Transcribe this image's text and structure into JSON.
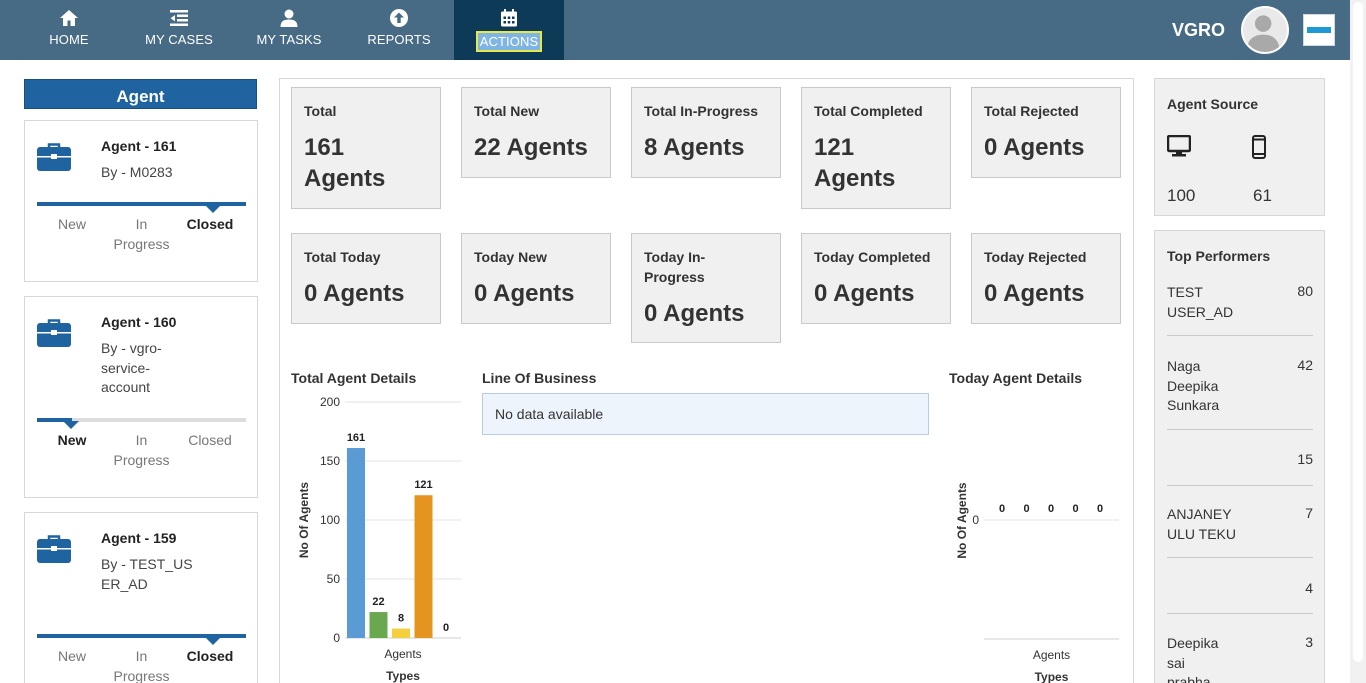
{
  "nav": {
    "items": [
      {
        "label": "HOME",
        "icon": "home-icon"
      },
      {
        "label": "MY CASES",
        "icon": "list-icon"
      },
      {
        "label": "MY TASKS",
        "icon": "user-icon"
      },
      {
        "label": "REPORTS",
        "icon": "upload-circle-icon"
      },
      {
        "label": "ACTIONS",
        "icon": "calendar-icon"
      }
    ],
    "active": "ACTIONS",
    "user": "VGRO"
  },
  "sidebar": {
    "header": "Agent",
    "stages": [
      "New",
      "In Progress",
      "Closed"
    ],
    "cards": [
      {
        "title": "Agent - 161",
        "by": "By - M0283",
        "stage": "Closed",
        "progress": 1.0
      },
      {
        "title": "Agent - 160",
        "by": "By - vgro-service-account",
        "stage": "New",
        "progress": 0.0
      },
      {
        "title": "Agent - 159",
        "by": "By - TEST_USER_AD",
        "stage": "Closed",
        "progress": 1.0
      }
    ]
  },
  "stats": {
    "row1": [
      {
        "label": "Total",
        "value": "161 Agents"
      },
      {
        "label": "Total New",
        "value": "22 Agents"
      },
      {
        "label": "Total In-Progress",
        "value": "8 Agents"
      },
      {
        "label": "Total Completed",
        "value": "121 Agents"
      },
      {
        "label": "Total Rejected",
        "value": "0 Agents"
      }
    ],
    "row2": [
      {
        "label": "Total Today",
        "value": "0 Agents"
      },
      {
        "label": "Today New",
        "value": "0 Agents"
      },
      {
        "label": "Today In-Progress",
        "value": "0 Agents"
      },
      {
        "label": "Today Completed",
        "value": "0 Agents"
      },
      {
        "label": "Today Rejected",
        "value": "0 Agents"
      }
    ]
  },
  "sections": {
    "total_details": "Total Agent Details",
    "line_of_business": "Line Of Business",
    "no_data": "No data available",
    "today_details": "Today Agent Details"
  },
  "chart_data": [
    {
      "type": "bar",
      "title": "Total Agent Details",
      "categories": [
        "Agents"
      ],
      "series": [
        {
          "values": [
            161
          ],
          "color": "#5b9bd5"
        },
        {
          "values": [
            22
          ],
          "color": "#6aa84f"
        },
        {
          "values": [
            8
          ],
          "color": "#f4d03f"
        },
        {
          "values": [
            121
          ],
          "color": "#e69420"
        },
        {
          "values": [
            0
          ],
          "color": "#e06666"
        }
      ],
      "xlabel": "Types",
      "ylabel": "No Of Agents",
      "ylim": [
        0,
        200
      ],
      "yticks": [
        0,
        50,
        100,
        150,
        200
      ],
      "grid": true
    },
    {
      "type": "bar",
      "title": "Today Agent Details",
      "categories": [
        "Agents"
      ],
      "series": [
        {
          "values": [
            0
          ]
        },
        {
          "values": [
            0
          ]
        },
        {
          "values": [
            0
          ]
        },
        {
          "values": [
            0
          ]
        },
        {
          "values": [
            0
          ]
        }
      ],
      "xlabel": "Types",
      "ylabel": "No Of Agents",
      "yticks": [
        0
      ],
      "grid": true
    }
  ],
  "agent_source": {
    "title": "Agent Source",
    "desktop_icon": "desktop-icon",
    "mobile_icon": "mobile-icon",
    "desktop": "100",
    "mobile": "61"
  },
  "top_performers": {
    "title": "Top Performers",
    "rows": [
      {
        "name": "TEST USER_AD",
        "score": "80"
      },
      {
        "name": "Naga Deepika Sunkara",
        "score": "42"
      },
      {
        "name": "",
        "score": "15"
      },
      {
        "name": "ANJANEY ULU TEKU",
        "score": "7"
      },
      {
        "name": "",
        "score": "4"
      },
      {
        "name": "Deepika sai prabha",
        "score": "3"
      }
    ]
  }
}
